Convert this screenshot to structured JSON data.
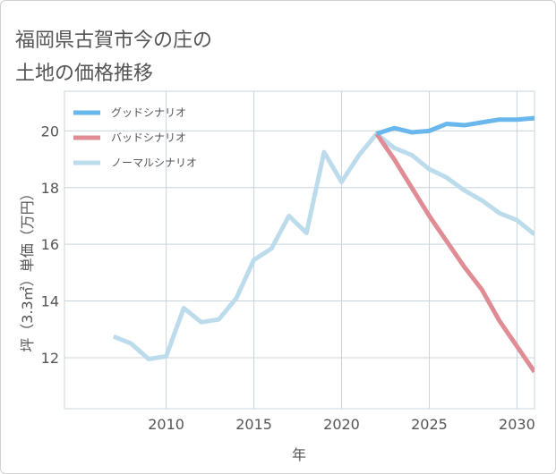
{
  "title_lines": [
    "福岡県古賀市今の庄の",
    "土地の価格推移"
  ],
  "chart_data": {
    "type": "line",
    "title": "福岡県古賀市今の庄の土地の価格推移",
    "xlabel": "年",
    "ylabel": "坪（3.3㎡）単価（万円）",
    "xlim": [
      2004.2,
      2031
    ],
    "ylim": [
      10.2,
      21.4
    ],
    "xticks": [
      2010,
      2015,
      2020,
      2025,
      2030
    ],
    "yticks": [
      12,
      14,
      16,
      18,
      20
    ],
    "grid": true,
    "legend_position": "top-left",
    "series": [
      {
        "name": "グッドシナリオ",
        "color": "#6ab7ee",
        "x": [
          2022,
          2023,
          2024,
          2025,
          2026,
          2027,
          2028,
          2029,
          2030,
          2031
        ],
        "y": [
          19.9,
          20.1,
          19.95,
          20.0,
          20.25,
          20.2,
          20.3,
          20.4,
          20.4,
          20.45
        ]
      },
      {
        "name": "バッドシナリオ",
        "color": "#df8c94",
        "x": [
          2022,
          2023,
          2024,
          2025,
          2026,
          2027,
          2028,
          2029,
          2030,
          2031
        ],
        "y": [
          19.9,
          19.0,
          18.0,
          17.0,
          16.1,
          15.2,
          14.4,
          13.3,
          12.4,
          11.5
        ]
      },
      {
        "name": "ノーマルシナリオ",
        "color": "#bcdcec",
        "x": [
          2007,
          2008,
          2009,
          2010,
          2011,
          2012,
          2013,
          2014,
          2015,
          2016,
          2017,
          2018,
          2019,
          2020,
          2021,
          2022,
          2023,
          2024,
          2025,
          2026,
          2027,
          2028,
          2029,
          2030,
          2031
        ],
        "y": [
          12.75,
          12.5,
          11.95,
          12.05,
          13.75,
          13.25,
          13.35,
          14.1,
          15.45,
          15.85,
          17.0,
          16.4,
          19.25,
          18.2,
          19.15,
          19.9,
          19.4,
          19.15,
          18.65,
          18.35,
          17.9,
          17.55,
          17.1,
          16.85,
          16.35
        ]
      }
    ]
  }
}
